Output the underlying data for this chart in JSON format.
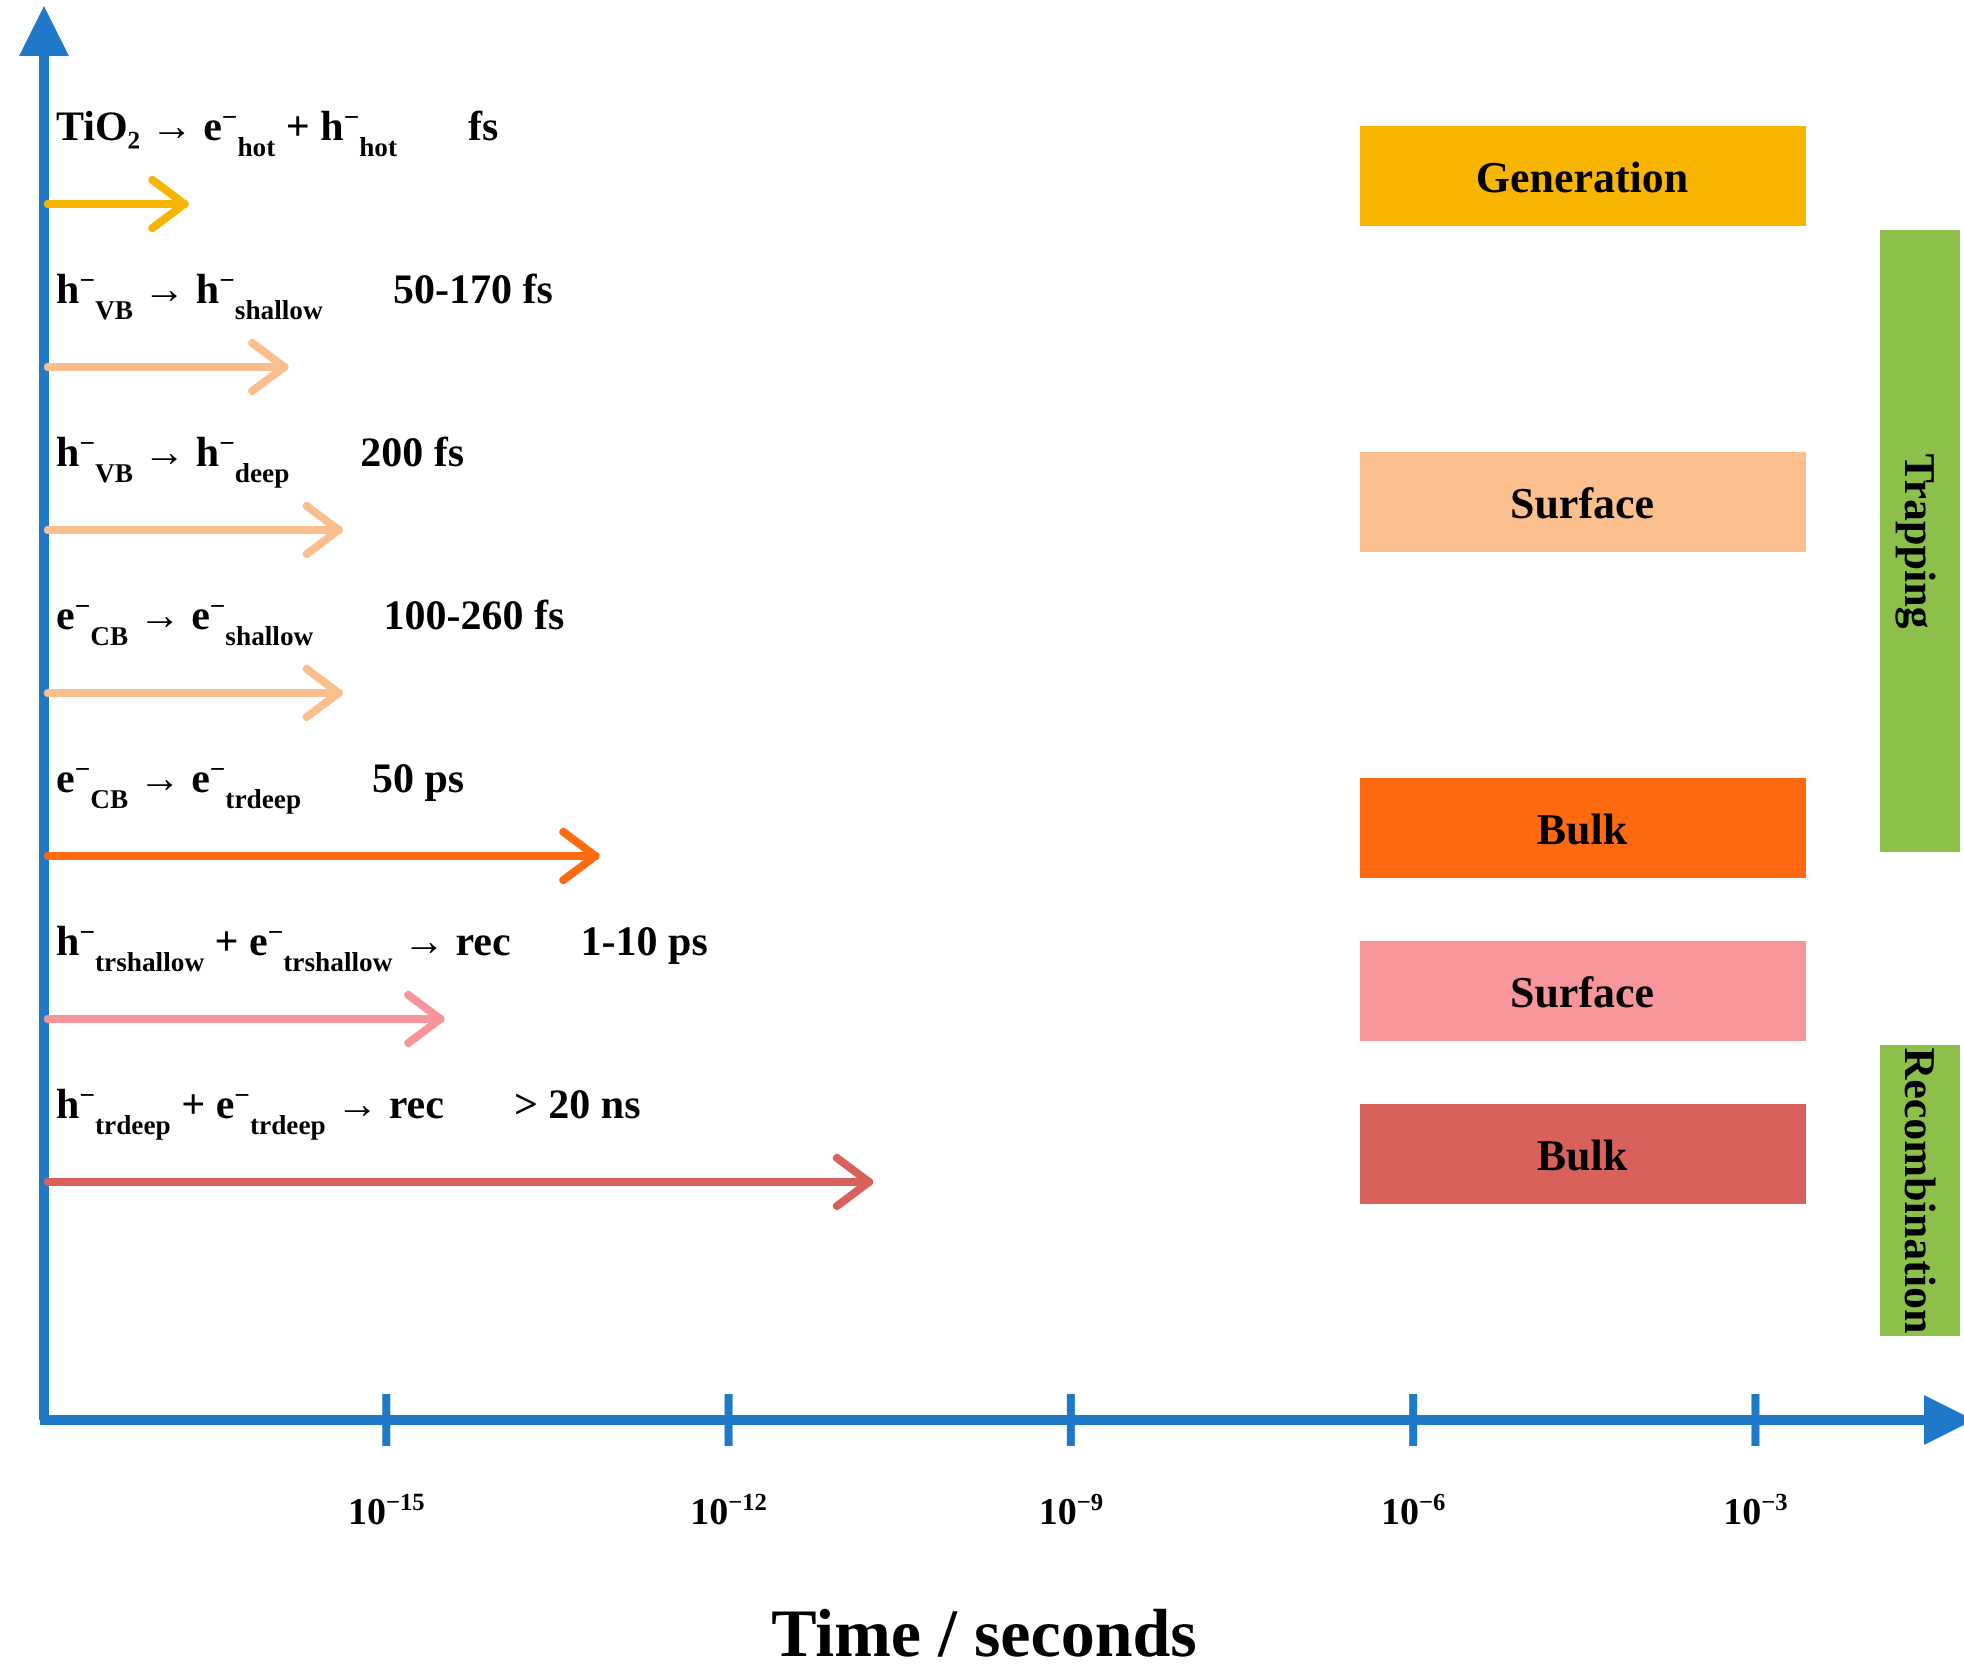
{
  "chart_data": {
    "type": "bar",
    "orientation": "horizontal",
    "log": "x",
    "xlabel": "Time / seconds",
    "categories": [
      "TiO₂ → e$^{−}$$_{hot}$ + h$^{−}$$_{hot}$",
      "h$^{−}$$_{VB}$ → h$^{−}$$_{shallow}$",
      "h$^{−}$$_{VB}$ → h$^{−}$$_{deep}$",
      "e$^{−}$$_{CB}$ → e$^{−}$$_{shallow}$",
      "e$^{−}$$_{CB}$ → e$^{−}$$_{tr}$$_{deep}$",
      "h$^{−}$$_{tr}$$_{shallow}$ + e$^{−}$$_{tr}$$_{shallow}$ → rec",
      "h$^{−}$$_{tr}$$_{deep}$ + e$^{−}$$_{tr}$$_{deep}$ → rec"
    ],
    "series": [
      {
        "name": "Generation",
        "color": "#f7b500",
        "values": [
          2e-17,
          null,
          null,
          null,
          null,
          null,
          null
        ]
      },
      {
        "name": "Surface",
        "color": "#fbbf8e",
        "values": [
          null,
          1.5e-16,
          4.5e-16,
          4.5e-16,
          null,
          null,
          null
        ]
      },
      {
        "name": "Bulk",
        "color": "#ff6a10",
        "values": [
          null,
          null,
          null,
          null,
          8e-14,
          null,
          null
        ]
      },
      {
        "name": "Surface",
        "color": "#f7959a",
        "values": [
          null,
          null,
          null,
          null,
          null,
          3.5e-15,
          null
        ]
      },
      {
        "name": "Bulk",
        "color": "#d8625b",
        "values": [
          null,
          null,
          null,
          null,
          null,
          null,
          2e-11
        ]
      }
    ],
    "xlim": [
      1e-18,
      0.03
    ],
    "xticks": [
      {
        "value": 1e-15,
        "label": "10$^{−15}$"
      },
      {
        "value": 1e-12,
        "label": "10$^{−12}$"
      },
      {
        "value": 1e-09,
        "label": "10$^{−9}$"
      },
      {
        "value": 1e-06,
        "label": "10$^{−6}$"
      },
      {
        "value": 0.001,
        "label": "10$^{−3}$"
      }
    ],
    "legend": "right",
    "annotations": [
      "Trapping",
      "Recombination",
      "fs",
      "50-170 fs",
      "200 fs",
      "100-260 fs",
      "50 ps",
      "1-10 ps",
      "> 20 ns"
    ]
  }
}
